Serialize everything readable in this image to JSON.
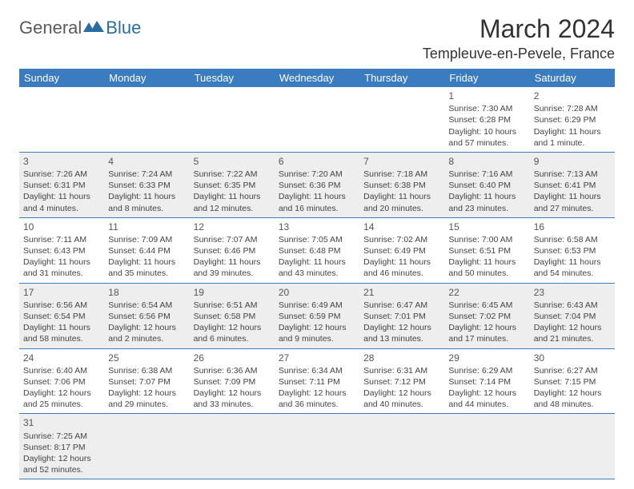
{
  "logo": {
    "text1": "General",
    "text2": "Blue"
  },
  "title": "March 2024",
  "location": "Templeuve-en-Pevele, France",
  "colors": {
    "header_bg": "#3b7bbf",
    "header_fg": "#ffffff",
    "alt_row_bg": "#eeeeee",
    "row_bg": "#ffffff",
    "border": "#3b7bbf",
    "logo_gray": "#5a5a5a",
    "logo_blue": "#2b6ca3"
  },
  "day_headers": [
    "Sunday",
    "Monday",
    "Tuesday",
    "Wednesday",
    "Thursday",
    "Friday",
    "Saturday"
  ],
  "weeks": [
    {
      "alt": false,
      "cells": [
        {
          "empty": true
        },
        {
          "empty": true
        },
        {
          "empty": true
        },
        {
          "empty": true
        },
        {
          "empty": true
        },
        {
          "num": "1",
          "sunrise": "Sunrise: 7:30 AM",
          "sunset": "Sunset: 6:28 PM",
          "day1": "Daylight: 10 hours",
          "day2": "and 57 minutes."
        },
        {
          "num": "2",
          "sunrise": "Sunrise: 7:28 AM",
          "sunset": "Sunset: 6:29 PM",
          "day1": "Daylight: 11 hours",
          "day2": "and 1 minute."
        }
      ]
    },
    {
      "alt": true,
      "cells": [
        {
          "num": "3",
          "sunrise": "Sunrise: 7:26 AM",
          "sunset": "Sunset: 6:31 PM",
          "day1": "Daylight: 11 hours",
          "day2": "and 4 minutes."
        },
        {
          "num": "4",
          "sunrise": "Sunrise: 7:24 AM",
          "sunset": "Sunset: 6:33 PM",
          "day1": "Daylight: 11 hours",
          "day2": "and 8 minutes."
        },
        {
          "num": "5",
          "sunrise": "Sunrise: 7:22 AM",
          "sunset": "Sunset: 6:35 PM",
          "day1": "Daylight: 11 hours",
          "day2": "and 12 minutes."
        },
        {
          "num": "6",
          "sunrise": "Sunrise: 7:20 AM",
          "sunset": "Sunset: 6:36 PM",
          "day1": "Daylight: 11 hours",
          "day2": "and 16 minutes."
        },
        {
          "num": "7",
          "sunrise": "Sunrise: 7:18 AM",
          "sunset": "Sunset: 6:38 PM",
          "day1": "Daylight: 11 hours",
          "day2": "and 20 minutes."
        },
        {
          "num": "8",
          "sunrise": "Sunrise: 7:16 AM",
          "sunset": "Sunset: 6:40 PM",
          "day1": "Daylight: 11 hours",
          "day2": "and 23 minutes."
        },
        {
          "num": "9",
          "sunrise": "Sunrise: 7:13 AM",
          "sunset": "Sunset: 6:41 PM",
          "day1": "Daylight: 11 hours",
          "day2": "and 27 minutes."
        }
      ]
    },
    {
      "alt": false,
      "cells": [
        {
          "num": "10",
          "sunrise": "Sunrise: 7:11 AM",
          "sunset": "Sunset: 6:43 PM",
          "day1": "Daylight: 11 hours",
          "day2": "and 31 minutes."
        },
        {
          "num": "11",
          "sunrise": "Sunrise: 7:09 AM",
          "sunset": "Sunset: 6:44 PM",
          "day1": "Daylight: 11 hours",
          "day2": "and 35 minutes."
        },
        {
          "num": "12",
          "sunrise": "Sunrise: 7:07 AM",
          "sunset": "Sunset: 6:46 PM",
          "day1": "Daylight: 11 hours",
          "day2": "and 39 minutes."
        },
        {
          "num": "13",
          "sunrise": "Sunrise: 7:05 AM",
          "sunset": "Sunset: 6:48 PM",
          "day1": "Daylight: 11 hours",
          "day2": "and 43 minutes."
        },
        {
          "num": "14",
          "sunrise": "Sunrise: 7:02 AM",
          "sunset": "Sunset: 6:49 PM",
          "day1": "Daylight: 11 hours",
          "day2": "and 46 minutes."
        },
        {
          "num": "15",
          "sunrise": "Sunrise: 7:00 AM",
          "sunset": "Sunset: 6:51 PM",
          "day1": "Daylight: 11 hours",
          "day2": "and 50 minutes."
        },
        {
          "num": "16",
          "sunrise": "Sunrise: 6:58 AM",
          "sunset": "Sunset: 6:53 PM",
          "day1": "Daylight: 11 hours",
          "day2": "and 54 minutes."
        }
      ]
    },
    {
      "alt": true,
      "cells": [
        {
          "num": "17",
          "sunrise": "Sunrise: 6:56 AM",
          "sunset": "Sunset: 6:54 PM",
          "day1": "Daylight: 11 hours",
          "day2": "and 58 minutes."
        },
        {
          "num": "18",
          "sunrise": "Sunrise: 6:54 AM",
          "sunset": "Sunset: 6:56 PM",
          "day1": "Daylight: 12 hours",
          "day2": "and 2 minutes."
        },
        {
          "num": "19",
          "sunrise": "Sunrise: 6:51 AM",
          "sunset": "Sunset: 6:58 PM",
          "day1": "Daylight: 12 hours",
          "day2": "and 6 minutes."
        },
        {
          "num": "20",
          "sunrise": "Sunrise: 6:49 AM",
          "sunset": "Sunset: 6:59 PM",
          "day1": "Daylight: 12 hours",
          "day2": "and 9 minutes."
        },
        {
          "num": "21",
          "sunrise": "Sunrise: 6:47 AM",
          "sunset": "Sunset: 7:01 PM",
          "day1": "Daylight: 12 hours",
          "day2": "and 13 minutes."
        },
        {
          "num": "22",
          "sunrise": "Sunrise: 6:45 AM",
          "sunset": "Sunset: 7:02 PM",
          "day1": "Daylight: 12 hours",
          "day2": "and 17 minutes."
        },
        {
          "num": "23",
          "sunrise": "Sunrise: 6:43 AM",
          "sunset": "Sunset: 7:04 PM",
          "day1": "Daylight: 12 hours",
          "day2": "and 21 minutes."
        }
      ]
    },
    {
      "alt": false,
      "cells": [
        {
          "num": "24",
          "sunrise": "Sunrise: 6:40 AM",
          "sunset": "Sunset: 7:06 PM",
          "day1": "Daylight: 12 hours",
          "day2": "and 25 minutes."
        },
        {
          "num": "25",
          "sunrise": "Sunrise: 6:38 AM",
          "sunset": "Sunset: 7:07 PM",
          "day1": "Daylight: 12 hours",
          "day2": "and 29 minutes."
        },
        {
          "num": "26",
          "sunrise": "Sunrise: 6:36 AM",
          "sunset": "Sunset: 7:09 PM",
          "day1": "Daylight: 12 hours",
          "day2": "and 33 minutes."
        },
        {
          "num": "27",
          "sunrise": "Sunrise: 6:34 AM",
          "sunset": "Sunset: 7:11 PM",
          "day1": "Daylight: 12 hours",
          "day2": "and 36 minutes."
        },
        {
          "num": "28",
          "sunrise": "Sunrise: 6:31 AM",
          "sunset": "Sunset: 7:12 PM",
          "day1": "Daylight: 12 hours",
          "day2": "and 40 minutes."
        },
        {
          "num": "29",
          "sunrise": "Sunrise: 6:29 AM",
          "sunset": "Sunset: 7:14 PM",
          "day1": "Daylight: 12 hours",
          "day2": "and 44 minutes."
        },
        {
          "num": "30",
          "sunrise": "Sunrise: 6:27 AM",
          "sunset": "Sunset: 7:15 PM",
          "day1": "Daylight: 12 hours",
          "day2": "and 48 minutes."
        }
      ]
    },
    {
      "alt": true,
      "cells": [
        {
          "num": "31",
          "sunrise": "Sunrise: 7:25 AM",
          "sunset": "Sunset: 8:17 PM",
          "day1": "Daylight: 12 hours",
          "day2": "and 52 minutes."
        },
        {
          "empty": true
        },
        {
          "empty": true
        },
        {
          "empty": true
        },
        {
          "empty": true
        },
        {
          "empty": true
        },
        {
          "empty": true
        }
      ]
    }
  ]
}
